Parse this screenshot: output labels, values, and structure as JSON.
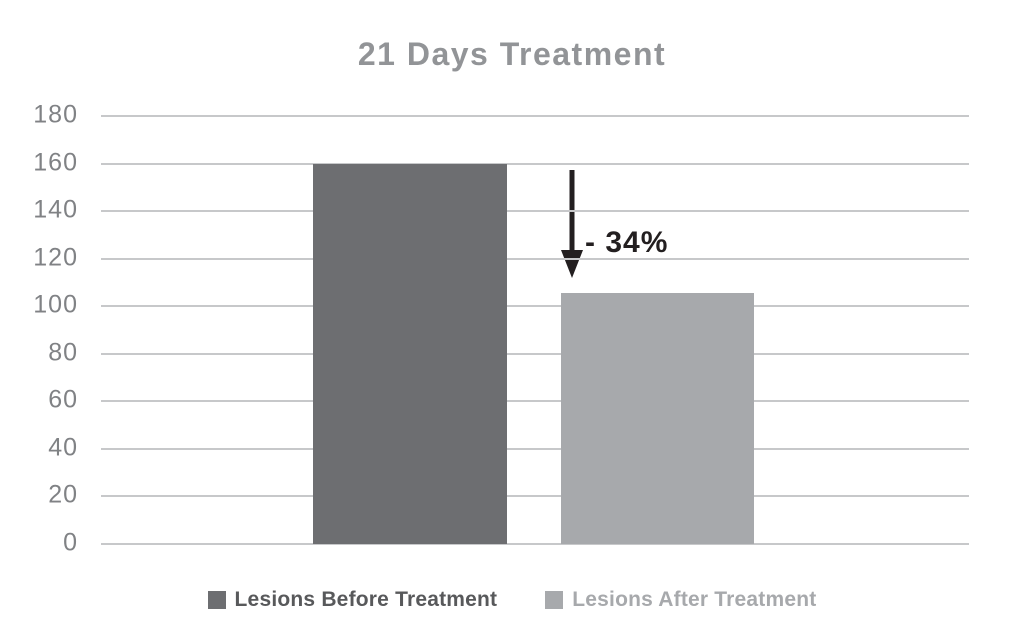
{
  "chart_data": {
    "type": "bar",
    "title": "21 Days Treatment",
    "categories": [
      "Lesions Before Treatment",
      "Lesions After Treatment"
    ],
    "series": [
      {
        "name": "Lesions Before Treatment",
        "value": 160,
        "color": "#6d6e71",
        "label_color": "#58595b"
      },
      {
        "name": "Lesions After Treatment",
        "value": 105.6,
        "color": "#a7a9ac",
        "label_color": "#a7a9ac"
      }
    ],
    "annotation": {
      "text": "- 34%",
      "color": "#231f20",
      "arrow": "down"
    },
    "xlabel": "",
    "ylabel": "",
    "yticks": [
      0,
      20,
      40,
      60,
      80,
      100,
      120,
      140,
      160,
      180
    ],
    "ylim": [
      0,
      180
    ],
    "grid": true,
    "legend_position": "bottom"
  },
  "colors": {
    "background": "#ffffff",
    "title": "#929497",
    "axis_labels": "#808285",
    "gridline": "#c7c8ca",
    "arrow": "#231f20"
  }
}
